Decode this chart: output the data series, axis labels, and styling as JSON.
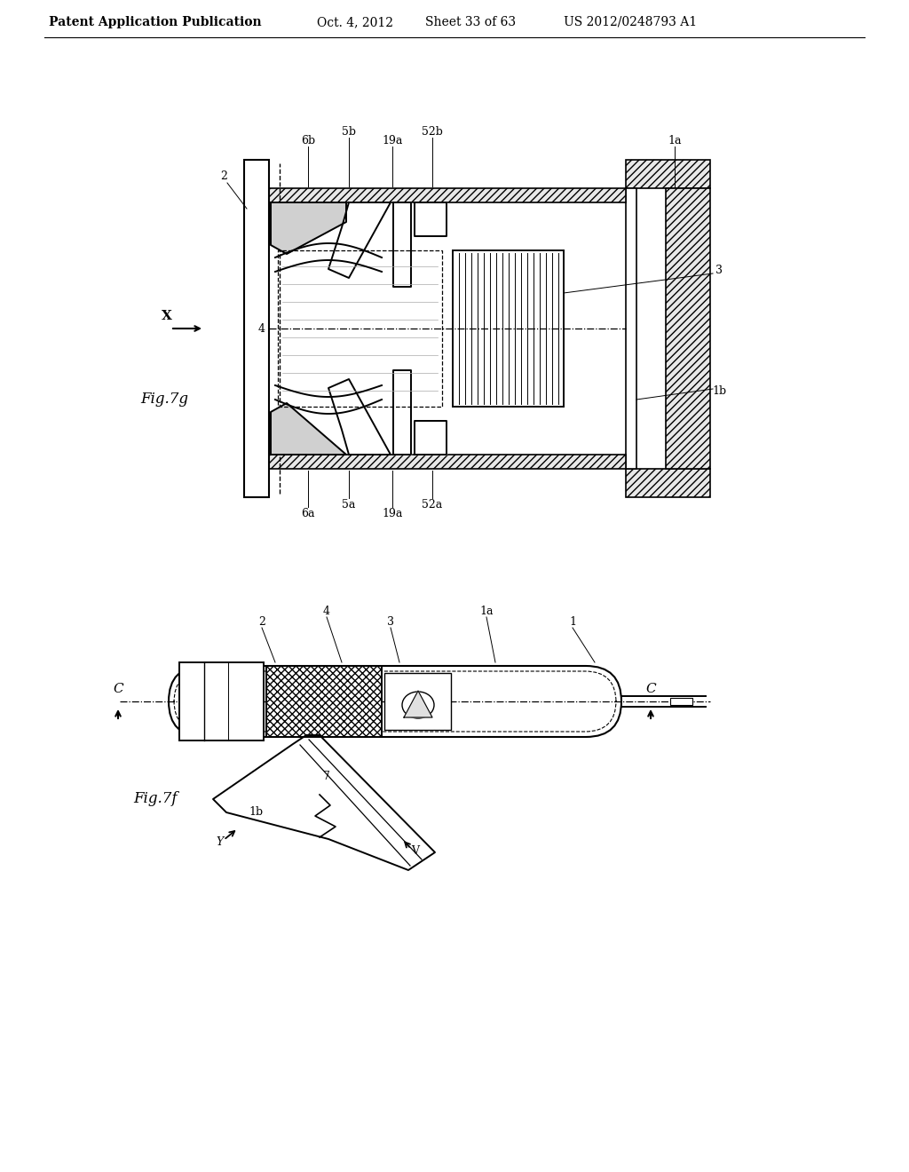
{
  "background_color": "#ffffff",
  "header_text": "Patent Application Publication",
  "header_date": "Oct. 4, 2012",
  "header_sheet": "Sheet 33 of 63",
  "header_patent": "US 2012/0248793 A1",
  "fig7g_label": "Fig.7g",
  "fig7f_label": "Fig.7f",
  "text_color": "#000000"
}
